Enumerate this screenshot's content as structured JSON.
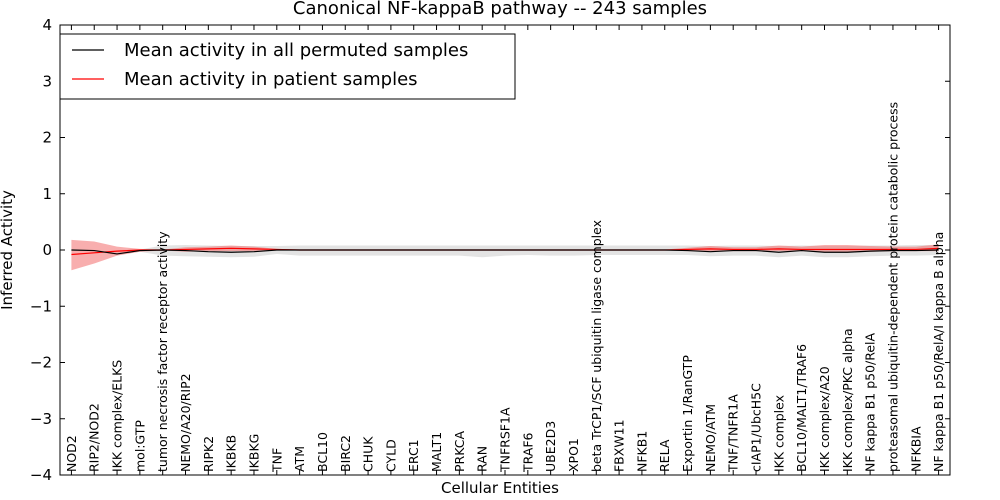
{
  "chart_data": {
    "type": "line",
    "title": "Canonical NF-kappaB pathway -- 243 samples",
    "xlabel": "Cellular Entities",
    "ylabel": "Inferred Activity",
    "ylim": [
      -4,
      4
    ],
    "yticks": [
      "4",
      "3",
      "2",
      "1",
      "0",
      "−1",
      "−2",
      "−3",
      "−4"
    ],
    "grid": false,
    "legend_position": "top-left",
    "categories": [
      "NOD2",
      "RIP2/NOD2",
      "IKK complex/ELKS",
      "mol:GTP",
      "tumor necrosis factor receptor activity",
      "NEMO/A20/RIP2",
      "RIPK2",
      "IKBKB",
      "IKBKG",
      "TNF",
      "ATM",
      "BCL10",
      "BIRC2",
      "CHUK",
      "CYLD",
      "ERC1",
      "MALT1",
      "PRKCA",
      "RAN",
      "TNFRSF1A",
      "TRAF6",
      "UBE2D3",
      "XPO1",
      "beta TrCP1/SCF ubiquitin ligase complex",
      "FBXW11",
      "NFKB1",
      "RELA",
      "Exportin 1/RanGTP",
      "NEMO/ATM",
      "TNF/TNFR1A",
      "cIAP1/UbcH5C",
      "IKK complex",
      "BCL10/MALT1/TRAF6",
      "IKK complex/A20",
      "IKK complex/PKC alpha",
      "NF kappa B1 p50/RelA",
      "proteasomal ubiquitin-dependent protein catabolic process",
      "NFKBIA",
      "NF kappa B1 p50/RelA/I kappa B alpha"
    ],
    "series": [
      {
        "name": "Mean activity in all permuted samples",
        "color": "#000000",
        "values": [
          0.0,
          -0.01,
          -0.07,
          -0.01,
          0.0,
          -0.01,
          -0.03,
          -0.04,
          -0.03,
          0.0,
          0.0,
          0.0,
          0.0,
          0.0,
          0.0,
          0.0,
          0.0,
          0.0,
          0.0,
          0.0,
          0.0,
          0.0,
          0.0,
          0.0,
          0.0,
          0.0,
          0.0,
          -0.01,
          -0.03,
          -0.01,
          -0.01,
          -0.04,
          -0.01,
          -0.04,
          -0.04,
          -0.02,
          -0.01,
          -0.01,
          0.0
        ],
        "lower": [
          -0.01,
          -0.02,
          -0.09,
          -0.03,
          -0.1,
          -0.11,
          -0.12,
          -0.13,
          -0.12,
          -0.07,
          -0.1,
          -0.1,
          -0.1,
          -0.1,
          -0.1,
          -0.1,
          -0.1,
          -0.1,
          -0.13,
          -0.1,
          -0.09,
          -0.1,
          -0.1,
          -0.09,
          -0.09,
          -0.09,
          -0.09,
          -0.09,
          -0.11,
          -0.1,
          -0.1,
          -0.13,
          -0.1,
          -0.13,
          -0.13,
          -0.11,
          -0.1,
          -0.1,
          -0.09
        ],
        "upper": [
          0.01,
          0.0,
          -0.05,
          0.01,
          0.08,
          0.09,
          0.08,
          0.07,
          0.07,
          0.07,
          0.08,
          0.08,
          0.08,
          0.08,
          0.08,
          0.08,
          0.08,
          0.08,
          0.08,
          0.08,
          0.08,
          0.08,
          0.08,
          0.08,
          0.08,
          0.08,
          0.08,
          0.08,
          0.07,
          0.08,
          0.08,
          0.07,
          0.08,
          0.07,
          0.07,
          0.08,
          0.08,
          0.09,
          0.09
        ]
      },
      {
        "name": "Mean activity in patient samples",
        "color": "#ff0000",
        "band_color": "#f26b6b",
        "values": [
          -0.08,
          -0.05,
          -0.02,
          0.0,
          0.0,
          0.01,
          0.02,
          0.03,
          0.02,
          0.01,
          0.0,
          0.0,
          0.0,
          0.0,
          0.0,
          0.0,
          0.0,
          0.0,
          0.0,
          0.0,
          0.0,
          0.0,
          0.0,
          0.0,
          0.0,
          0.0,
          0.0,
          0.01,
          0.02,
          0.01,
          0.01,
          0.02,
          0.01,
          0.01,
          0.01,
          0.01,
          0.01,
          0.01,
          0.03
        ],
        "lower": [
          -0.36,
          -0.24,
          -0.1,
          -0.03,
          -0.01,
          -0.03,
          -0.02,
          -0.02,
          -0.02,
          -0.01,
          -0.01,
          -0.01,
          -0.01,
          -0.01,
          -0.01,
          -0.01,
          -0.01,
          -0.01,
          -0.01,
          -0.01,
          -0.01,
          -0.01,
          -0.01,
          -0.01,
          -0.01,
          -0.01,
          -0.01,
          -0.02,
          -0.02,
          -0.02,
          -0.02,
          -0.02,
          -0.02,
          -0.03,
          -0.03,
          -0.03,
          -0.02,
          -0.02,
          -0.02
        ],
        "upper": [
          0.18,
          0.15,
          0.06,
          0.02,
          0.01,
          0.05,
          0.06,
          0.08,
          0.06,
          0.02,
          0.01,
          0.01,
          0.01,
          0.01,
          0.01,
          0.01,
          0.01,
          0.01,
          0.01,
          0.01,
          0.01,
          0.01,
          0.01,
          0.01,
          0.01,
          0.01,
          0.01,
          0.04,
          0.07,
          0.05,
          0.05,
          0.08,
          0.06,
          0.09,
          0.09,
          0.07,
          0.06,
          0.06,
          0.1
        ]
      }
    ]
  }
}
